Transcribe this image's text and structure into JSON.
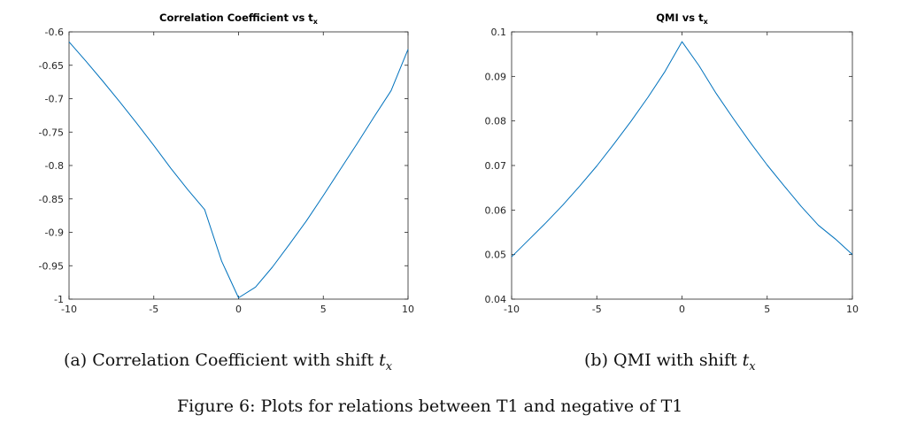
{
  "figure_caption": "Figure 6: Plots for relations between T1 and negative of T1",
  "subcaptions": [
    {
      "label": "(a)",
      "text": "Correlation Coefficient with shift",
      "math_var": "t",
      "math_sub": "x"
    },
    {
      "label": "(b)",
      "text": "QMI with shift",
      "math_var": "t",
      "math_sub": "x"
    }
  ],
  "line_color": "#0072BD",
  "chart_data": [
    {
      "type": "line",
      "title": "Correlation Coefficient vs t",
      "title_subscript": "x",
      "xlabel": "",
      "ylabel": "",
      "xlim": [
        -10,
        10
      ],
      "ylim": [
        -1,
        -0.6
      ],
      "xticks": [
        -10,
        -5,
        0,
        5,
        10
      ],
      "yticks": [
        -1,
        -0.95,
        -0.9,
        -0.85,
        -0.8,
        -0.75,
        -0.7,
        -0.65,
        -0.6
      ],
      "ytick_labels": [
        "-1",
        "-0.95",
        "-0.9",
        "-0.85",
        "-0.8",
        "-0.75",
        "-0.7",
        "-0.65",
        "-0.6"
      ],
      "grid": false,
      "series": [
        {
          "x": [
            -10,
            -9,
            -8,
            -7,
            -6,
            -5,
            -4,
            -3,
            -2,
            -1,
            0,
            1,
            2,
            3,
            4,
            5,
            6,
            7,
            8,
            9,
            10
          ],
          "values": [
            -0.615,
            -0.644,
            -0.674,
            -0.705,
            -0.737,
            -0.77,
            -0.804,
            -0.836,
            -0.866,
            -0.943,
            -0.998,
            -0.982,
            -0.952,
            -0.918,
            -0.883,
            -0.845,
            -0.806,
            -0.767,
            -0.727,
            -0.688,
            -0.626
          ]
        }
      ]
    },
    {
      "type": "line",
      "title": "QMI vs t",
      "title_subscript": "x",
      "xlabel": "",
      "ylabel": "",
      "xlim": [
        -10,
        10
      ],
      "ylim": [
        0.04,
        0.1
      ],
      "xticks": [
        -10,
        -5,
        0,
        5,
        10
      ],
      "yticks": [
        0.04,
        0.05,
        0.06,
        0.07,
        0.08,
        0.09,
        0.1
      ],
      "ytick_labels": [
        "0.04",
        "0.05",
        "0.06",
        "0.07",
        "0.08",
        "0.09",
        "0.1"
      ],
      "grid": false,
      "series": [
        {
          "x": [
            -10,
            -9,
            -8,
            -7,
            -6,
            -5,
            -4,
            -3,
            -2,
            -1,
            0,
            1,
            2,
            3,
            4,
            5,
            6,
            7,
            8,
            9,
            10
          ],
          "values": [
            0.0495,
            0.0533,
            0.0571,
            0.0611,
            0.0654,
            0.0699,
            0.0748,
            0.0799,
            0.0853,
            0.0911,
            0.0978,
            0.0924,
            0.0862,
            0.0806,
            0.0752,
            0.0701,
            0.0654,
            0.0608,
            0.0566,
            0.0535,
            0.05
          ]
        }
      ]
    }
  ]
}
